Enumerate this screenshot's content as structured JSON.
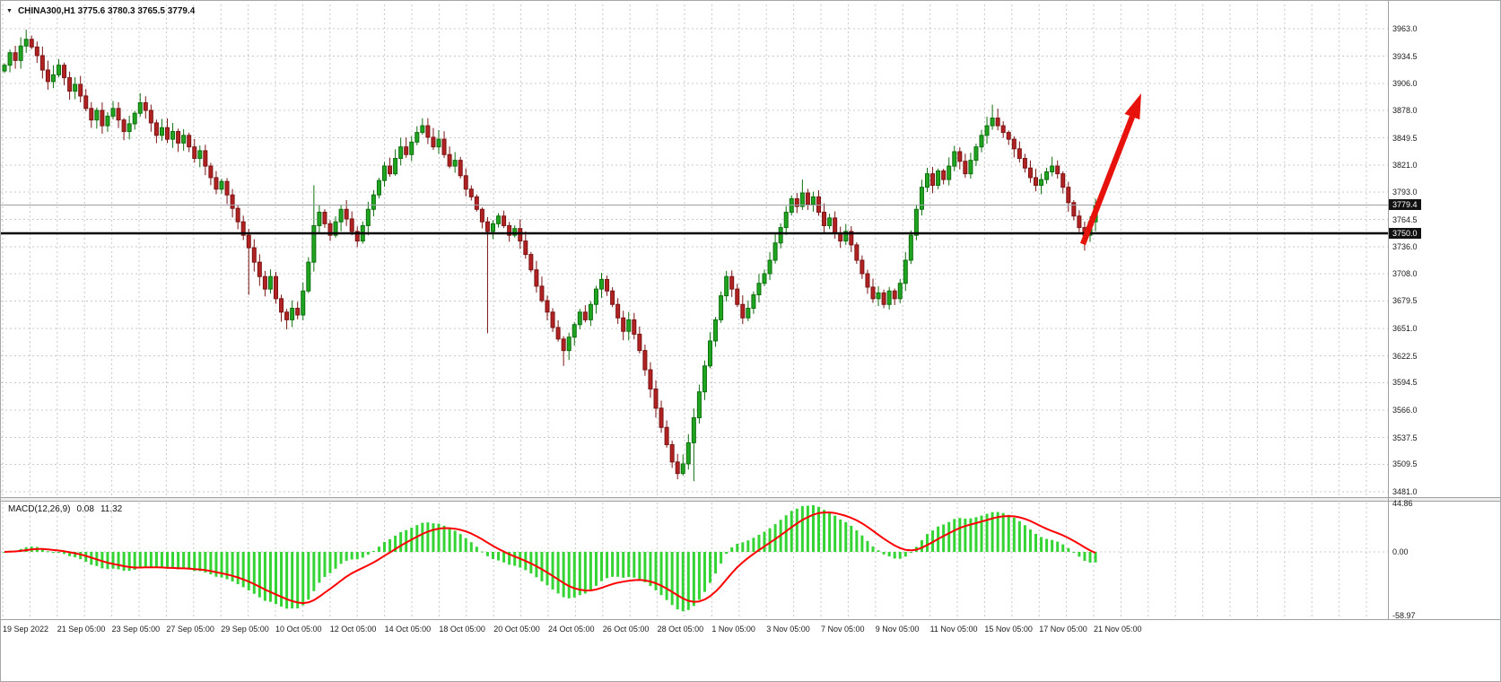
{
  "window": {
    "background": "#ffffff",
    "border_color": "#a6a6a6"
  },
  "header": {
    "collapse_icon": "▼",
    "symbol_ohlc_label": "CHINA300,H1 3775.6 3780.3 3765.5 3779.4"
  },
  "chart_data": {
    "type": "candlestick",
    "title": "CHINA300,H1",
    "symbol": "CHINA300",
    "timeframe": "H1",
    "ohlc": {
      "open": 3775.6,
      "high": 3780.3,
      "low": 3765.5,
      "close": 3779.4
    },
    "price_range": {
      "top": 3963.0,
      "bottom": 3481.0
    },
    "price_axis_ticks": [
      "3963.0",
      "3934.5",
      "3906.0",
      "3878.0",
      "3849.5",
      "3821.0",
      "3793.0",
      "3764.5",
      "3736.0",
      "3708.0",
      "3679.5",
      "3651.0",
      "3622.5",
      "3594.5",
      "3566.0",
      "3537.5",
      "3509.5",
      "3481.0"
    ],
    "time_axis_labels": [
      "19 Sep 2022",
      "21 Sep 05:00",
      "23 Sep 05:00",
      "27 Sep 05:00",
      "29 Sep 05:00",
      "10 Oct 05:00",
      "12 Oct 05:00",
      "14 Oct 05:00",
      "18 Oct 05:00",
      "20 Oct 05:00",
      "24 Oct 05:00",
      "26 Oct 05:00",
      "28 Oct 05:00",
      "1 Nov 05:00",
      "3 Nov 05:00",
      "7 Nov 05:00",
      "9 Nov 05:00",
      "11 Nov 05:00",
      "15 Nov 05:00",
      "17 Nov 05:00",
      "21 Nov 05:00"
    ],
    "current_price": 3779.4,
    "current_price_label": "3779.4",
    "support_level": 3750.0,
    "support_level_label": "3750.0",
    "closes": [
      3925,
      3938,
      3930,
      3945,
      3952,
      3944,
      3935,
      3920,
      3908,
      3915,
      3925,
      3912,
      3898,
      3905,
      3893,
      3880,
      3868,
      3878,
      3862,
      3872,
      3880,
      3868,
      3856,
      3864,
      3875,
      3886,
      3878,
      3865,
      3852,
      3860,
      3848,
      3856,
      3844,
      3852,
      3840,
      3828,
      3836,
      3820,
      3808,
      3796,
      3804,
      3790,
      3776,
      3762,
      3748,
      3735,
      3720,
      3705,
      3692,
      3705,
      3682,
      3668,
      3660,
      3672,
      3665,
      3690,
      3720,
      3758,
      3772,
      3760,
      3748,
      3762,
      3775,
      3765,
      3752,
      3742,
      3758,
      3775,
      3790,
      3805,
      3820,
      3812,
      3828,
      3840,
      3832,
      3845,
      3855,
      3862,
      3850,
      3840,
      3848,
      3832,
      3820,
      3826,
      3810,
      3796,
      3788,
      3775,
      3762,
      3752,
      3760,
      3768,
      3758,
      3748,
      3755,
      3742,
      3728,
      3712,
      3695,
      3680,
      3668,
      3652,
      3640,
      3628,
      3642,
      3655,
      3668,
      3660,
      3676,
      3692,
      3702,
      3690,
      3676,
      3662,
      3648,
      3660,
      3645,
      3628,
      3608,
      3588,
      3568,
      3548,
      3530,
      3512,
      3500,
      3510,
      3532,
      3558,
      3585,
      3612,
      3638,
      3660,
      3685,
      3705,
      3692,
      3676,
      3662,
      3672,
      3686,
      3698,
      3708,
      3722,
      3740,
      3756,
      3772,
      3786,
      3778,
      3792,
      3780,
      3788,
      3772,
      3758,
      3766,
      3750,
      3742,
      3752,
      3738,
      3722,
      3708,
      3694,
      3682,
      3688,
      3676,
      3690,
      3682,
      3698,
      3722,
      3748,
      3775,
      3798,
      3812,
      3800,
      3815,
      3806,
      3820,
      3835,
      3825,
      3812,
      3826,
      3840,
      3852,
      3862,
      3870,
      3862,
      3855,
      3848,
      3838,
      3828,
      3818,
      3808,
      3800,
      3806,
      3814,
      3820,
      3812,
      3798,
      3782,
      3768,
      3756,
      3748,
      3762,
      3779.4
    ],
    "wick_overrides": [
      {
        "i": 4,
        "high": 3962
      },
      {
        "i": 25,
        "high": 3896
      },
      {
        "i": 45,
        "low": 3686
      },
      {
        "i": 52,
        "low": 3650
      },
      {
        "i": 57,
        "high": 3800
      },
      {
        "i": 89,
        "low": 3646
      },
      {
        "i": 103,
        "low": 3612
      },
      {
        "i": 124,
        "low": 3494
      },
      {
        "i": 127,
        "low": 3492
      },
      {
        "i": 147,
        "high": 3806
      },
      {
        "i": 182,
        "high": 3884
      },
      {
        "i": 199,
        "low": 3732
      }
    ],
    "macd": {
      "label": "MACD(12,26,9)",
      "value_macd": "0.08",
      "value_signal": "11.32",
      "axis_ticks": [
        "44.86",
        "0.00",
        "-58.97"
      ],
      "axis_max": 44.86,
      "axis_min": -58.97,
      "params": {
        "fast": 12,
        "slow": 26,
        "signal": 9
      }
    },
    "annotation": {
      "type": "arrow-up-right"
    },
    "colors": {
      "bull_fill": "#1fa51f",
      "bull_border": "#0e6f0e",
      "bear_fill": "#b22222",
      "bear_border": "#7a1414",
      "grid": "#c9c9c9",
      "macd_histogram": "#35d435",
      "macd_signal": "#ff0000",
      "support_line": "#000000",
      "current_price_line": "#9aa0a6",
      "badge_bg": "#111111",
      "badge_text": "#ffffff",
      "arrow": "#e8120c",
      "frame": "#a0a0a0"
    }
  }
}
